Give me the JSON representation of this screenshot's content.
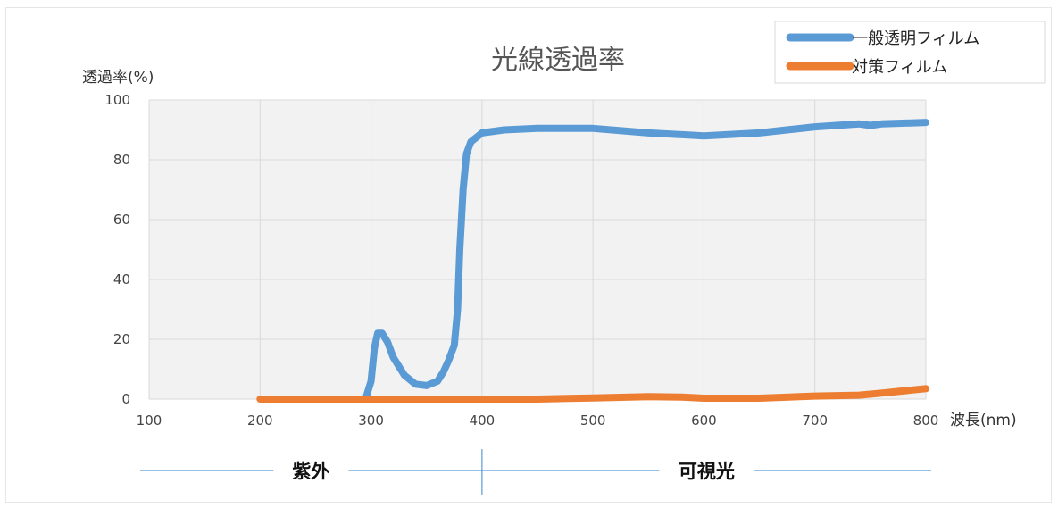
{
  "chart_data": {
    "type": "line",
    "title": "光線透過率",
    "ylabel": "透過率(%)",
    "xlabel": "波長(nm)",
    "xlim": [
      100,
      800
    ],
    "ylim": [
      0,
      100
    ],
    "x_ticks": [
      100,
      200,
      300,
      400,
      500,
      600,
      700,
      800
    ],
    "y_ticks": [
      0,
      20,
      40,
      60,
      80,
      100
    ],
    "grid": true,
    "legend": "top-right",
    "series": [
      {
        "name": "一般透明フィルム",
        "color": "#5B9BD5",
        "points": [
          [
            295,
            0
          ],
          [
            300,
            6
          ],
          [
            303,
            17
          ],
          [
            306,
            22
          ],
          [
            310,
            22
          ],
          [
            315,
            19
          ],
          [
            320,
            14
          ],
          [
            330,
            8
          ],
          [
            340,
            5
          ],
          [
            350,
            4.5
          ],
          [
            360,
            6
          ],
          [
            365,
            9
          ],
          [
            370,
            13
          ],
          [
            375,
            18
          ],
          [
            378,
            30
          ],
          [
            380,
            50
          ],
          [
            383,
            70
          ],
          [
            386,
            82
          ],
          [
            390,
            86
          ],
          [
            400,
            89
          ],
          [
            420,
            90
          ],
          [
            450,
            90.5
          ],
          [
            500,
            90.5
          ],
          [
            550,
            89
          ],
          [
            600,
            88
          ],
          [
            650,
            89
          ],
          [
            700,
            91
          ],
          [
            740,
            92
          ],
          [
            750,
            91.5
          ],
          [
            760,
            92
          ],
          [
            800,
            92.5
          ]
        ]
      },
      {
        "name": "対策フィルム",
        "color": "#ED7D31",
        "points": [
          [
            200,
            0
          ],
          [
            300,
            0
          ],
          [
            400,
            0
          ],
          [
            450,
            0
          ],
          [
            500,
            0.4
          ],
          [
            550,
            0.8
          ],
          [
            580,
            0.7
          ],
          [
            600,
            0.3
          ],
          [
            650,
            0.3
          ],
          [
            700,
            1
          ],
          [
            740,
            1.3
          ],
          [
            760,
            2
          ],
          [
            800,
            3.5
          ]
        ]
      }
    ],
    "regions": [
      {
        "label": "紫外",
        "from": 100,
        "to": 400
      },
      {
        "label": "可視光",
        "from": 400,
        "to": 800
      }
    ]
  }
}
